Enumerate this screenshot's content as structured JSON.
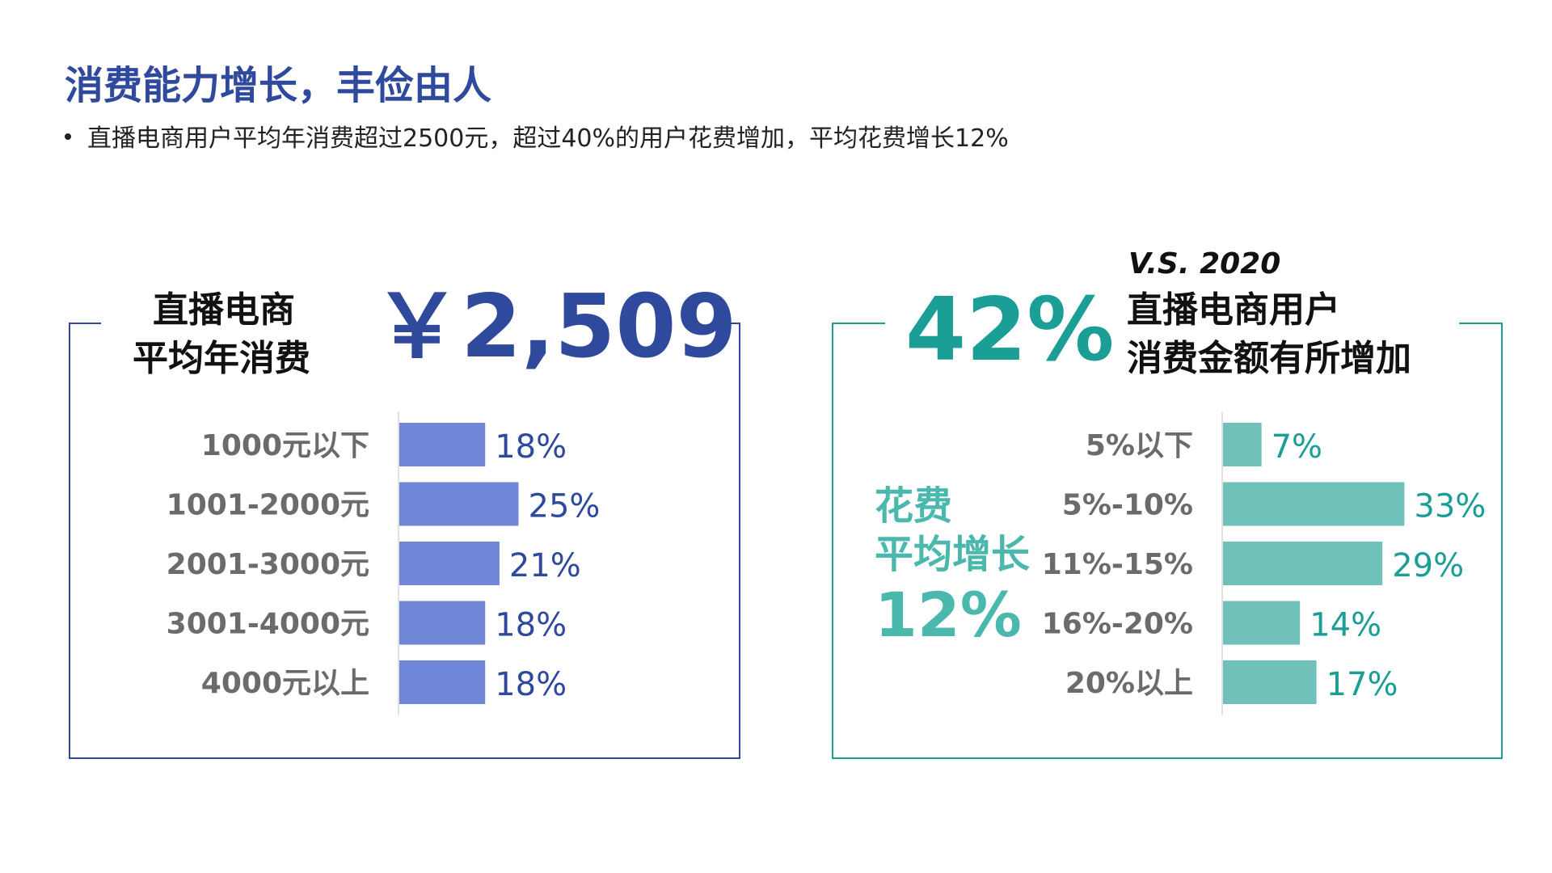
{
  "page": {
    "title": "消费能力增长，丰俭由人",
    "bullet": "直播电商用户平均年消费超过2500元，超过40%的用户花费增加，平均花费增长12%"
  },
  "left_panel": {
    "heading_line1": "直播电商",
    "heading_line2": "平均年消费",
    "big_value": "￥2,509",
    "accent_color": "#2f4a9c",
    "bar_color": "#7086d6"
  },
  "right_panel": {
    "big_value": "42%",
    "vs_label": "V.S. 2020",
    "heading_line1": "直播电商用户",
    "heading_line2": "消费金额有所增加",
    "side_line1": "花费",
    "side_line2": "平均增长",
    "side_value": "12%",
    "accent_color": "#1a9e96",
    "bar_color": "#6fc1b9"
  },
  "chart_data": [
    {
      "type": "bar",
      "orientation": "horizontal",
      "categories": [
        "1000元以下",
        "1001-2000元",
        "2001-3000元",
        "3001-4000元",
        "4000元以上"
      ],
      "values": [
        18,
        25,
        21,
        18,
        18
      ],
      "labels": [
        "18%",
        "25%",
        "21%",
        "18%",
        "18%"
      ]
    },
    {
      "type": "bar",
      "orientation": "horizontal",
      "categories": [
        "5%以下",
        "5%-10%",
        "11%-15%",
        "16%-20%",
        "20%以上"
      ],
      "values": [
        7,
        33,
        29,
        14,
        17
      ],
      "labels": [
        "7%",
        "33%",
        "29%",
        "14%",
        "17%"
      ]
    }
  ]
}
